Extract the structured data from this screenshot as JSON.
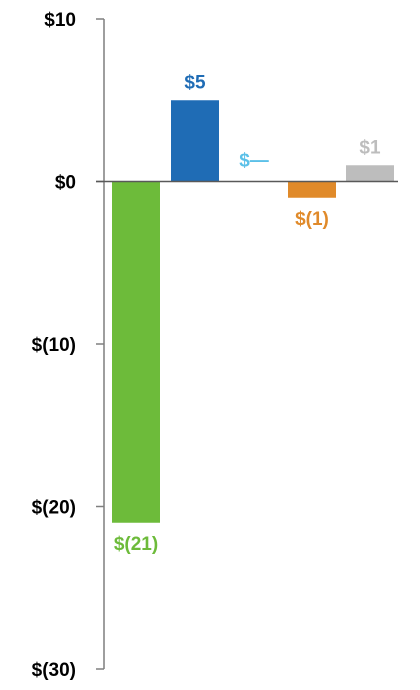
{
  "chart_data": {
    "type": "bar",
    "title": "",
    "xlabel": "",
    "ylabel": "",
    "ylim": [
      -30,
      10
    ],
    "yticks": [
      10,
      0,
      -10,
      -20,
      -30
    ],
    "ytick_labels": [
      "$10",
      "$0",
      "$(10)",
      "$(20)",
      "$(30)"
    ],
    "grid": false,
    "legend": "none",
    "values": [
      -21,
      5,
      0,
      -1,
      1
    ],
    "data_labels": [
      "$(21)",
      "$5",
      "$—",
      "$(1)",
      "$1"
    ],
    "colors": [
      "#6dbb3a",
      "#1f6cb5",
      "#5bc0e8",
      "#e08a2a",
      "#bdbdbd"
    ]
  }
}
